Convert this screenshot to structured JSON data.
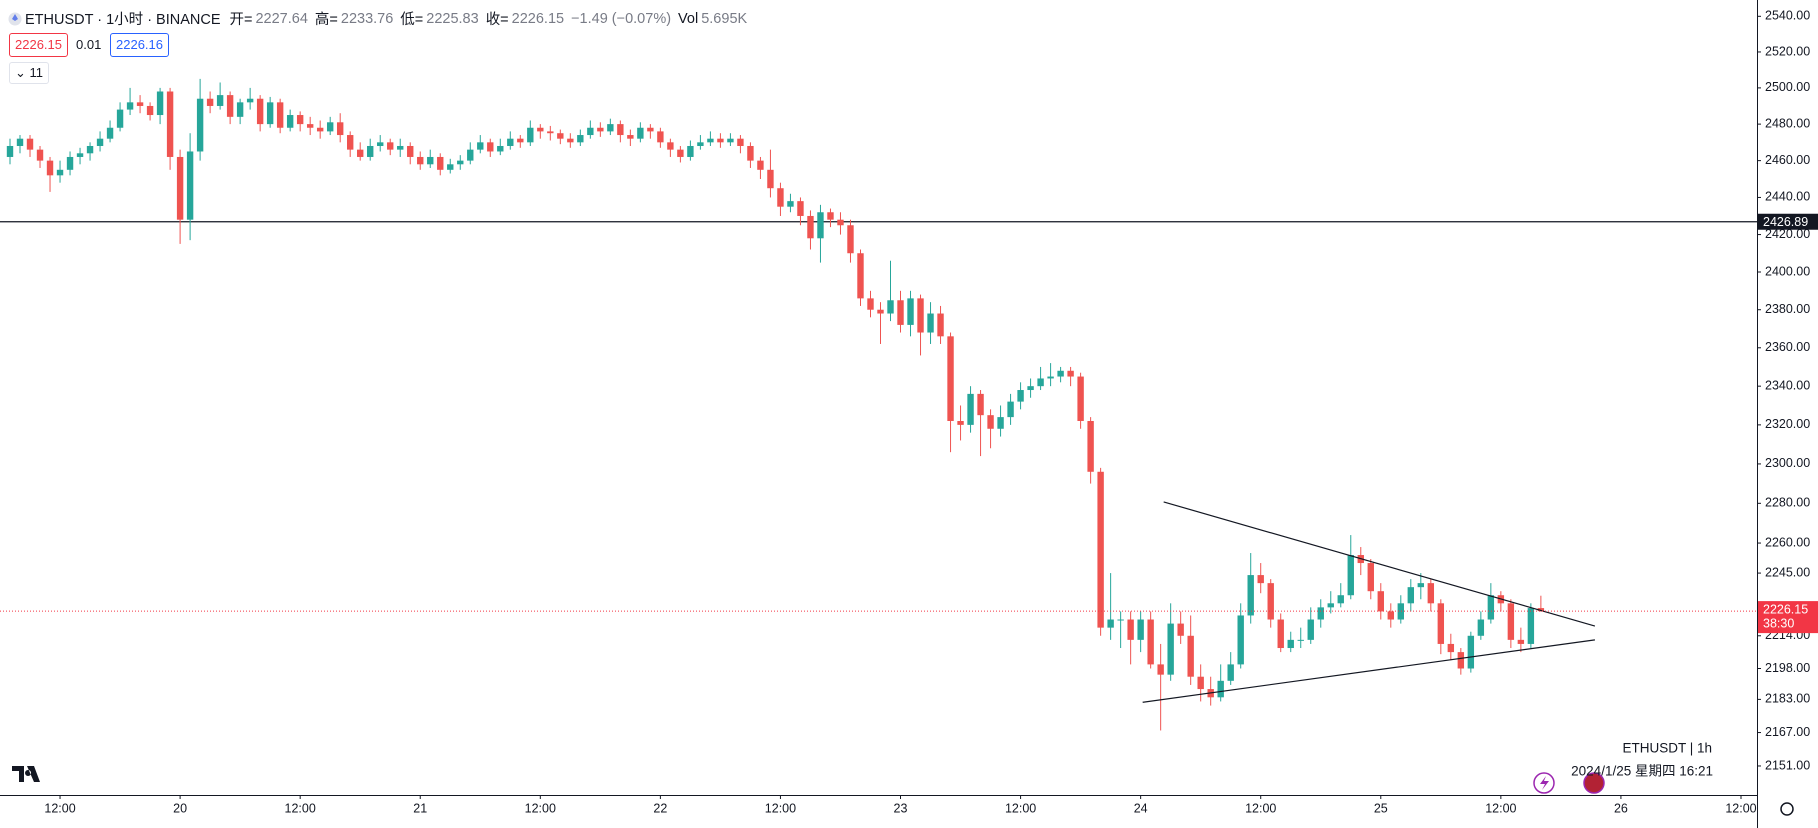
{
  "header": {
    "symbol": "ETHUSDT · 1小时 · BINANCE",
    "o": "开=",
    "h": "高=",
    "l": "低=",
    "c": "收=",
    "change": "−1.49 (−0.07%)",
    "vol_label": "Vol",
    "vol": "5.695K",
    "bid": "2226.15",
    "spread": "0.01",
    "ask": "2226.16",
    "indicators": "11",
    "countdown": "38:30",
    "footer_symbol": "ETHUSDT | 1h",
    "footer_time": "2024/1/25 星期四 16:21"
  },
  "chart_data": {
    "type": "candlestick",
    "up_color": "#26a69a",
    "down_color": "#ef5350",
    "log_scale": true,
    "ylim": [
      2137.2,
      2549.2
    ],
    "yticks": [
      {
        "value": 2540,
        "label": "2540.00"
      },
      {
        "value": 2520,
        "label": "2520.00"
      },
      {
        "value": 2500,
        "label": "2500.00"
      },
      {
        "value": 2480,
        "label": "2480.00"
      },
      {
        "value": 2460,
        "label": "2460.00"
      },
      {
        "value": 2440,
        "label": "2440.00"
      },
      {
        "value": 2420,
        "label": "2420.00"
      },
      {
        "value": 2400,
        "label": "2400.00"
      },
      {
        "value": 2380,
        "label": "2380.00"
      },
      {
        "value": 2360,
        "label": "2360.00"
      },
      {
        "value": 2340,
        "label": "2340.00"
      },
      {
        "value": 2320,
        "label": "2320.00"
      },
      {
        "value": 2300,
        "label": "2300.00"
      },
      {
        "value": 2280,
        "label": "2280.00"
      },
      {
        "value": 2260,
        "label": "2260.00"
      },
      {
        "value": 2245,
        "label": "2245.00"
      },
      {
        "value": 2214,
        "label": "2214.00"
      },
      {
        "value": 2198,
        "label": "2198.00"
      },
      {
        "value": 2183,
        "label": "2183.00"
      },
      {
        "value": 2167,
        "label": "2167.00"
      },
      {
        "value": 2151,
        "label": "2151.00"
      }
    ],
    "xlim": [
      -1,
      174.6
    ],
    "xticks": [
      {
        "value": 5,
        "label": "12:00"
      },
      {
        "value": 17,
        "label": "20"
      },
      {
        "value": 29,
        "label": "12:00"
      },
      {
        "value": 41,
        "label": "21"
      },
      {
        "value": 53,
        "label": "12:00"
      },
      {
        "value": 65,
        "label": "22"
      },
      {
        "value": 77,
        "label": "12:00"
      },
      {
        "value": 89,
        "label": "23"
      },
      {
        "value": 101,
        "label": "12:00"
      },
      {
        "value": 113,
        "label": "24"
      },
      {
        "value": 125,
        "label": "12:00"
      },
      {
        "value": 137,
        "label": "25"
      },
      {
        "value": 149,
        "label": "12:00"
      },
      {
        "value": 161,
        "label": "26"
      },
      {
        "value": 173,
        "label": "12:00"
      }
    ],
    "hline": 2426.89,
    "drawings": [
      {
        "points": [
          [
            115.3,
            2280.7
          ],
          [
            158.4,
            2218.8
          ]
        ]
      },
      {
        "points": [
          [
            113.2,
            2181.6
          ],
          [
            158.4,
            2212.0
          ]
        ]
      }
    ],
    "ohlc": [
      [
        2462,
        2472,
        2458,
        2468
      ],
      [
        2468,
        2474,
        2464,
        2472
      ],
      [
        2472,
        2474,
        2462,
        2466
      ],
      [
        2466,
        2468,
        2456,
        2460
      ],
      [
        2460,
        2462,
        2443,
        2452
      ],
      [
        2452,
        2460,
        2448,
        2455
      ],
      [
        2455,
        2465,
        2452,
        2462
      ],
      [
        2462,
        2467,
        2458,
        2464
      ],
      [
        2464,
        2470,
        2460,
        2468
      ],
      [
        2468,
        2476,
        2465,
        2472
      ],
      [
        2472,
        2482,
        2470,
        2478
      ],
      [
        2478,
        2492,
        2476,
        2488
      ],
      [
        2488,
        2500,
        2485,
        2492
      ],
      [
        2492,
        2496,
        2486,
        2490
      ],
      [
        2490,
        2492,
        2482,
        2485
      ],
      [
        2485,
        2500,
        2480,
        2498
      ],
      [
        2498,
        2500,
        2455,
        2462
      ],
      [
        2462,
        2466,
        2415,
        2428
      ],
      [
        2428,
        2475,
        2417,
        2465
      ],
      [
        2465,
        2505,
        2460,
        2494
      ],
      [
        2494,
        2498,
        2486,
        2490
      ],
      [
        2490,
        2503,
        2488,
        2496
      ],
      [
        2496,
        2498,
        2480,
        2484
      ],
      [
        2484,
        2494,
        2480,
        2492
      ],
      [
        2492,
        2500,
        2488,
        2494
      ],
      [
        2494,
        2496,
        2476,
        2480
      ],
      [
        2480,
        2495,
        2478,
        2492
      ],
      [
        2492,
        2494,
        2475,
        2478
      ],
      [
        2478,
        2488,
        2476,
        2485
      ],
      [
        2485,
        2487,
        2476,
        2480
      ],
      [
        2480,
        2484,
        2474,
        2478
      ],
      [
        2478,
        2482,
        2472,
        2476
      ],
      [
        2476,
        2484,
        2474,
        2481
      ],
      [
        2481,
        2486,
        2470,
        2474
      ],
      [
        2474,
        2476,
        2462,
        2466
      ],
      [
        2466,
        2470,
        2460,
        2462
      ],
      [
        2462,
        2472,
        2460,
        2468
      ],
      [
        2468,
        2474,
        2465,
        2470
      ],
      [
        2470,
        2472,
        2463,
        2466
      ],
      [
        2466,
        2472,
        2462,
        2468
      ],
      [
        2468,
        2470,
        2458,
        2462
      ],
      [
        2462,
        2465,
        2455,
        2458
      ],
      [
        2458,
        2466,
        2456,
        2462
      ],
      [
        2462,
        2464,
        2452,
        2455
      ],
      [
        2455,
        2461,
        2453,
        2458
      ],
      [
        2458,
        2463,
        2455,
        2460
      ],
      [
        2460,
        2470,
        2458,
        2466
      ],
      [
        2466,
        2474,
        2464,
        2470
      ],
      [
        2470,
        2472,
        2462,
        2465
      ],
      [
        2465,
        2472,
        2463,
        2468
      ],
      [
        2468,
        2476,
        2466,
        2472
      ],
      [
        2472,
        2474,
        2467,
        2470
      ],
      [
        2470,
        2482,
        2468,
        2478
      ],
      [
        2478,
        2480,
        2472,
        2476
      ],
      [
        2476,
        2479,
        2471,
        2475
      ],
      [
        2475,
        2477,
        2469,
        2472
      ],
      [
        2472,
        2475,
        2467,
        2470
      ],
      [
        2470,
        2477,
        2468,
        2474
      ],
      [
        2474,
        2482,
        2472,
        2478
      ],
      [
        2478,
        2481,
        2473,
        2476
      ],
      [
        2476,
        2483,
        2474,
        2480
      ],
      [
        2480,
        2482,
        2470,
        2474
      ],
      [
        2474,
        2477,
        2468,
        2472
      ],
      [
        2472,
        2481,
        2470,
        2478
      ],
      [
        2478,
        2480,
        2472,
        2476
      ],
      [
        2476,
        2478,
        2467,
        2470
      ],
      [
        2470,
        2472,
        2462,
        2466
      ],
      [
        2466,
        2468,
        2459,
        2462
      ],
      [
        2462,
        2471,
        2460,
        2468
      ],
      [
        2468,
        2474,
        2466,
        2470
      ],
      [
        2470,
        2476,
        2468,
        2472
      ],
      [
        2472,
        2475,
        2467,
        2470
      ],
      [
        2470,
        2475,
        2468,
        2472
      ],
      [
        2472,
        2474,
        2464,
        2468
      ],
      [
        2468,
        2470,
        2456,
        2460
      ],
      [
        2460,
        2462,
        2450,
        2455
      ],
      [
        2455,
        2466,
        2440,
        2445
      ],
      [
        2445,
        2448,
        2430,
        2435
      ],
      [
        2435,
        2442,
        2432,
        2438
      ],
      [
        2438,
        2440,
        2425,
        2430
      ],
      [
        2430,
        2433,
        2412,
        2418
      ],
      [
        2418,
        2436,
        2405,
        2432
      ],
      [
        2432,
        2434,
        2424,
        2428
      ],
      [
        2428,
        2432,
        2420,
        2425
      ],
      [
        2425,
        2428,
        2405,
        2410
      ],
      [
        2410,
        2412,
        2382,
        2386
      ],
      [
        2386,
        2390,
        2376,
        2380
      ],
      [
        2380,
        2384,
        2362,
        2378
      ],
      [
        2378,
        2406,
        2374,
        2385
      ],
      [
        2385,
        2390,
        2368,
        2372
      ],
      [
        2372,
        2390,
        2366,
        2386
      ],
      [
        2386,
        2388,
        2356,
        2368
      ],
      [
        2368,
        2384,
        2362,
        2378
      ],
      [
        2378,
        2382,
        2362,
        2366
      ],
      [
        2366,
        2368,
        2306,
        2322
      ],
      [
        2322,
        2330,
        2312,
        2320
      ],
      [
        2320,
        2340,
        2316,
        2336
      ],
      [
        2336,
        2338,
        2304,
        2325
      ],
      [
        2325,
        2328,
        2308,
        2318
      ],
      [
        2318,
        2330,
        2314,
        2324
      ],
      [
        2324,
        2336,
        2320,
        2332
      ],
      [
        2332,
        2342,
        2328,
        2338
      ],
      [
        2338,
        2344,
        2334,
        2340
      ],
      [
        2340,
        2350,
        2338,
        2344
      ],
      [
        2344,
        2352,
        2340,
        2345
      ],
      [
        2345,
        2350,
        2342,
        2348
      ],
      [
        2348,
        2350,
        2340,
        2345
      ],
      [
        2345,
        2347,
        2318,
        2322
      ],
      [
        2322,
        2324,
        2290,
        2296
      ],
      [
        2296,
        2298,
        2214,
        2218
      ],
      [
        2218,
        2245,
        2212,
        2222
      ],
      [
        2222,
        2226,
        2208,
        2222
      ],
      [
        2222,
        2226,
        2200,
        2212
      ],
      [
        2212,
        2226,
        2206,
        2222
      ],
      [
        2222,
        2226,
        2198,
        2200
      ],
      [
        2200,
        2210,
        2168,
        2195
      ],
      [
        2195,
        2230,
        2192,
        2220
      ],
      [
        2220,
        2226,
        2210,
        2214
      ],
      [
        2214,
        2224,
        2190,
        2194
      ],
      [
        2194,
        2200,
        2182,
        2188
      ],
      [
        2188,
        2194,
        2180,
        2184
      ],
      [
        2184,
        2200,
        2182,
        2192
      ],
      [
        2192,
        2206,
        2190,
        2200
      ],
      [
        2200,
        2230,
        2198,
        2224
      ],
      [
        2224,
        2255,
        2220,
        2244
      ],
      [
        2244,
        2250,
        2235,
        2240
      ],
      [
        2240,
        2242,
        2218,
        2222
      ],
      [
        2222,
        2225,
        2206,
        2208
      ],
      [
        2208,
        2216,
        2206,
        2212
      ],
      [
        2212,
        2218,
        2208,
        2212
      ],
      [
        2212,
        2228,
        2210,
        2222
      ],
      [
        2222,
        2232,
        2218,
        2228
      ],
      [
        2228,
        2236,
        2225,
        2230
      ],
      [
        2230,
        2240,
        2228,
        2234
      ],
      [
        2234,
        2264,
        2232,
        2254
      ],
      [
        2254,
        2258,
        2244,
        2250
      ],
      [
        2250,
        2252,
        2232,
        2236
      ],
      [
        2236,
        2240,
        2222,
        2226
      ],
      [
        2226,
        2230,
        2218,
        2222
      ],
      [
        2222,
        2234,
        2220,
        2230
      ],
      [
        2230,
        2242,
        2226,
        2238
      ],
      [
        2238,
        2245,
        2232,
        2240
      ],
      [
        2240,
        2242,
        2226,
        2230
      ],
      [
        2230,
        2232,
        2205,
        2210
      ],
      [
        2210,
        2215,
        2202,
        2206
      ],
      [
        2206,
        2208,
        2195,
        2198
      ],
      [
        2198,
        2216,
        2196,
        2214
      ],
      [
        2214,
        2226,
        2212,
        2222
      ],
      [
        2222,
        2240,
        2220,
        2234
      ],
      [
        2234,
        2236,
        2226,
        2230
      ],
      [
        2230,
        2232,
        2208,
        2212
      ],
      [
        2212,
        2218,
        2206,
        2210
      ],
      [
        2210,
        2230,
        2208,
        2227.64
      ],
      [
        2227.64,
        2233.76,
        2225.83,
        2226.15
      ]
    ]
  }
}
